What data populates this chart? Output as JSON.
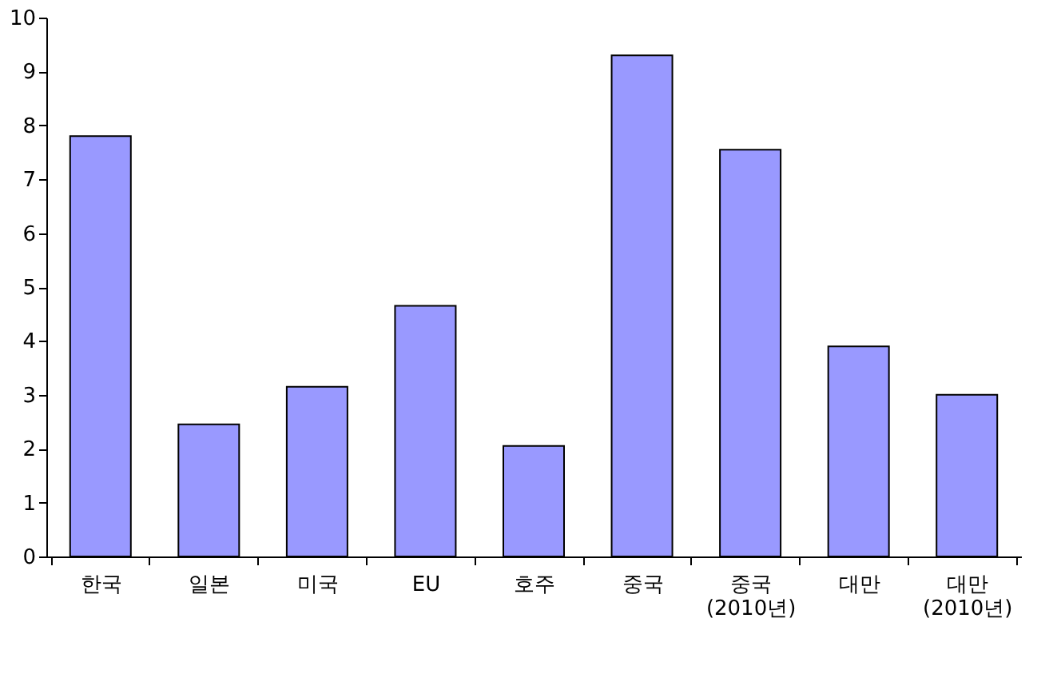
{
  "chart_data": {
    "type": "bar",
    "categories": [
      "한국",
      "일본",
      "미국",
      "EU",
      "호주",
      "중국",
      "중국\n(2010년)",
      "대만",
      "대만\n(2010년)"
    ],
    "values": [
      7.8,
      2.45,
      3.15,
      4.65,
      2.05,
      9.3,
      7.55,
      3.9,
      3.0
    ],
    "color": "#9999ff",
    "ylim": [
      0,
      10
    ],
    "yticks": [
      0,
      1,
      2,
      3,
      4,
      5,
      6,
      7,
      8,
      9,
      10
    ],
    "grid": false
  }
}
